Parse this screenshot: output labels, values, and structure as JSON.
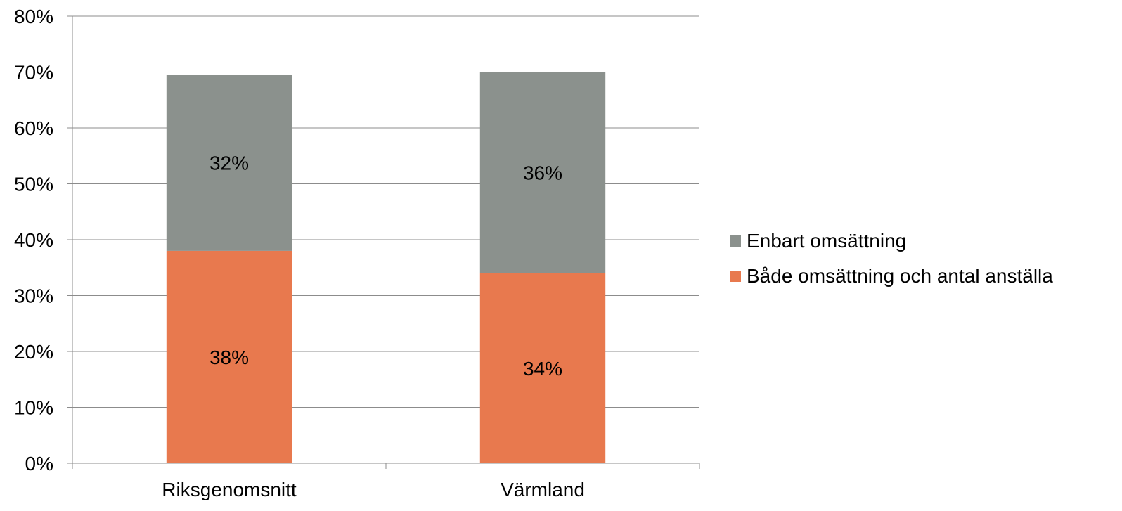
{
  "chart_data": {
    "type": "bar",
    "stacked": true,
    "categories": [
      "Riksgenomsnitt",
      "Värmland"
    ],
    "series": [
      {
        "name": "Både omsättning och antal anställa",
        "values": [
          38,
          34
        ],
        "labels": [
          "38%",
          "34%"
        ],
        "color": "#E8794E"
      },
      {
        "name": "Enbart omsättning",
        "values": [
          31.5,
          36
        ],
        "labels": [
          "32%",
          "36%"
        ],
        "color": "#8B918D"
      }
    ],
    "ylim": [
      0,
      80
    ],
    "yticks": [
      "0%",
      "10%",
      "20%",
      "30%",
      "40%",
      "50%",
      "60%",
      "70%",
      "80%"
    ],
    "grid": true,
    "legend_position": "right"
  },
  "legend": {
    "items": [
      {
        "label": "Enbart omsättning",
        "color": "#8B918D"
      },
      {
        "label": "Både omsättning och antal anställa",
        "color": "#E8794E"
      }
    ]
  }
}
